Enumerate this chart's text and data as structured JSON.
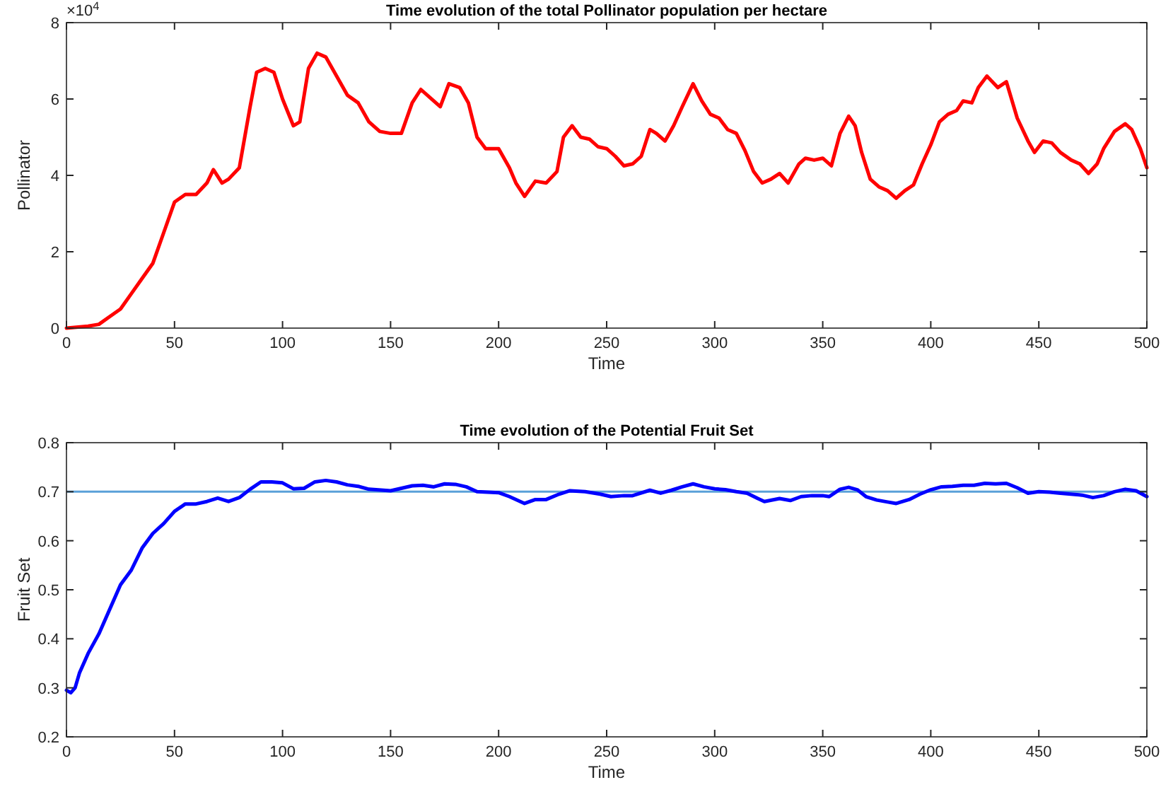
{
  "chart_data": [
    {
      "type": "line",
      "title": "Time evolution of the total Pollinator population per hectare",
      "xlabel": "Time",
      "ylabel": "Pollinator",
      "annotations": [
        "×10$^{4}$"
      ],
      "xlim": [
        0,
        500
      ],
      "xticks": [
        0,
        50,
        100,
        150,
        200,
        250,
        300,
        350,
        400,
        450,
        500
      ],
      "ylim": [
        0,
        8
      ],
      "yticks": [
        0,
        2,
        4,
        6,
        8
      ],
      "grid": false,
      "marker": "none",
      "line_style": "solid",
      "x": [
        0,
        10,
        15,
        20,
        25,
        30,
        35,
        40,
        45,
        50,
        55,
        60,
        65,
        68,
        72,
        75,
        80,
        85,
        88,
        92,
        96,
        100,
        105,
        108,
        112,
        116,
        120,
        125,
        130,
        135,
        140,
        145,
        150,
        155,
        160,
        164,
        168,
        173,
        177,
        182,
        186,
        190,
        194,
        200,
        205,
        208,
        212,
        217,
        222,
        227,
        230,
        234,
        238,
        242,
        246,
        250,
        254,
        258,
        262,
        266,
        270,
        273,
        277,
        281,
        285,
        290,
        294,
        298,
        302,
        306,
        310,
        314,
        318,
        322,
        326,
        330,
        334,
        339,
        342,
        346,
        350,
        354,
        358,
        362,
        365,
        368,
        372,
        376,
        380,
        384,
        388,
        392,
        396,
        400,
        404,
        408,
        412,
        415,
        419,
        422,
        426,
        431,
        435,
        440,
        445,
        448,
        452,
        456,
        460,
        465,
        469,
        473,
        477,
        480,
        485,
        490,
        493,
        497,
        500
      ],
      "series": [
        {
          "color": "#ff0000",
          "values": [
            0,
            0.05,
            0.1,
            0.3,
            0.5,
            0.9,
            1.3,
            1.7,
            2.5,
            3.3,
            3.5,
            3.5,
            3.8,
            4.15,
            3.8,
            3.9,
            4.2,
            5.8,
            6.7,
            6.8,
            6.7,
            6.0,
            5.3,
            5.4,
            6.8,
            7.2,
            7.1,
            6.6,
            6.1,
            5.9,
            5.4,
            5.15,
            5.1,
            5.1,
            5.9,
            6.25,
            6.05,
            5.8,
            6.4,
            6.3,
            5.9,
            5.0,
            4.7,
            4.7,
            4.2,
            3.8,
            3.45,
            3.85,
            3.8,
            4.1,
            5.0,
            5.3,
            5.0,
            4.95,
            4.75,
            4.7,
            4.5,
            4.25,
            4.3,
            4.5,
            5.2,
            5.1,
            4.9,
            5.3,
            5.8,
            6.4,
            5.95,
            5.6,
            5.5,
            5.2,
            5.1,
            4.65,
            4.1,
            3.8,
            3.9,
            4.05,
            3.8,
            4.3,
            4.45,
            4.4,
            4.45,
            4.25,
            5.1,
            5.55,
            5.3,
            4.6,
            3.9,
            3.7,
            3.6,
            3.4,
            3.6,
            3.75,
            4.3,
            4.8,
            5.4,
            5.6,
            5.7,
            5.95,
            5.9,
            6.3,
            6.6,
            6.3,
            6.45,
            5.5,
            4.9,
            4.6,
            4.9,
            4.85,
            4.6,
            4.4,
            4.3,
            4.05,
            4.3,
            4.7,
            5.15,
            5.35,
            5.2,
            4.7,
            4.2
          ]
        }
      ]
    },
    {
      "type": "line",
      "title": "Time evolution of the Potential Fruit Set",
      "xlabel": "Time",
      "ylabel": "Fruit Set",
      "xlim": [
        0,
        500
      ],
      "xticks": [
        0,
        50,
        100,
        150,
        200,
        250,
        300,
        350,
        400,
        450,
        500
      ],
      "ylim": [
        0.2,
        0.8
      ],
      "yticks": [
        0.2,
        0.3,
        0.4,
        0.5,
        0.6,
        0.7,
        0.8
      ],
      "grid": false,
      "marker": "none",
      "line_style": "solid",
      "ref_lines": [
        {
          "axis": "y",
          "value": 0.7,
          "color": "#5aa0d8"
        }
      ],
      "x": [
        0,
        2,
        4,
        6,
        10,
        15,
        20,
        25,
        30,
        35,
        40,
        45,
        50,
        55,
        60,
        65,
        70,
        75,
        80,
        85,
        90,
        95,
        100,
        105,
        110,
        115,
        120,
        125,
        130,
        135,
        140,
        150,
        155,
        160,
        165,
        170,
        175,
        180,
        185,
        190,
        200,
        205,
        212,
        217,
        222,
        228,
        233,
        240,
        247,
        252,
        258,
        262,
        270,
        275,
        280,
        285,
        290,
        295,
        300,
        305,
        310,
        315,
        320,
        323,
        330,
        335,
        340,
        345,
        350,
        353,
        358,
        362,
        366,
        370,
        375,
        380,
        384,
        390,
        395,
        400,
        405,
        410,
        415,
        420,
        425,
        430,
        435,
        440,
        445,
        450,
        455,
        460,
        470,
        475,
        480,
        485,
        490,
        495,
        500
      ],
      "series": [
        {
          "color": "#0000ff",
          "values": [
            0.295,
            0.29,
            0.3,
            0.33,
            0.37,
            0.41,
            0.46,
            0.51,
            0.54,
            0.585,
            0.615,
            0.635,
            0.66,
            0.675,
            0.675,
            0.68,
            0.687,
            0.68,
            0.688,
            0.705,
            0.72,
            0.72,
            0.718,
            0.706,
            0.707,
            0.72,
            0.723,
            0.72,
            0.714,
            0.711,
            0.705,
            0.702,
            0.707,
            0.712,
            0.713,
            0.71,
            0.716,
            0.715,
            0.71,
            0.7,
            0.698,
            0.69,
            0.676,
            0.684,
            0.684,
            0.695,
            0.702,
            0.7,
            0.695,
            0.69,
            0.692,
            0.692,
            0.703,
            0.697,
            0.703,
            0.71,
            0.716,
            0.71,
            0.706,
            0.704,
            0.7,
            0.697,
            0.686,
            0.68,
            0.686,
            0.682,
            0.69,
            0.692,
            0.692,
            0.69,
            0.705,
            0.709,
            0.704,
            0.69,
            0.683,
            0.679,
            0.676,
            0.684,
            0.695,
            0.704,
            0.71,
            0.711,
            0.713,
            0.713,
            0.717,
            0.716,
            0.717,
            0.708,
            0.697,
            0.7,
            0.699,
            0.697,
            0.693,
            0.688,
            0.692,
            0.7,
            0.705,
            0.702,
            0.69
          ]
        }
      ]
    }
  ]
}
